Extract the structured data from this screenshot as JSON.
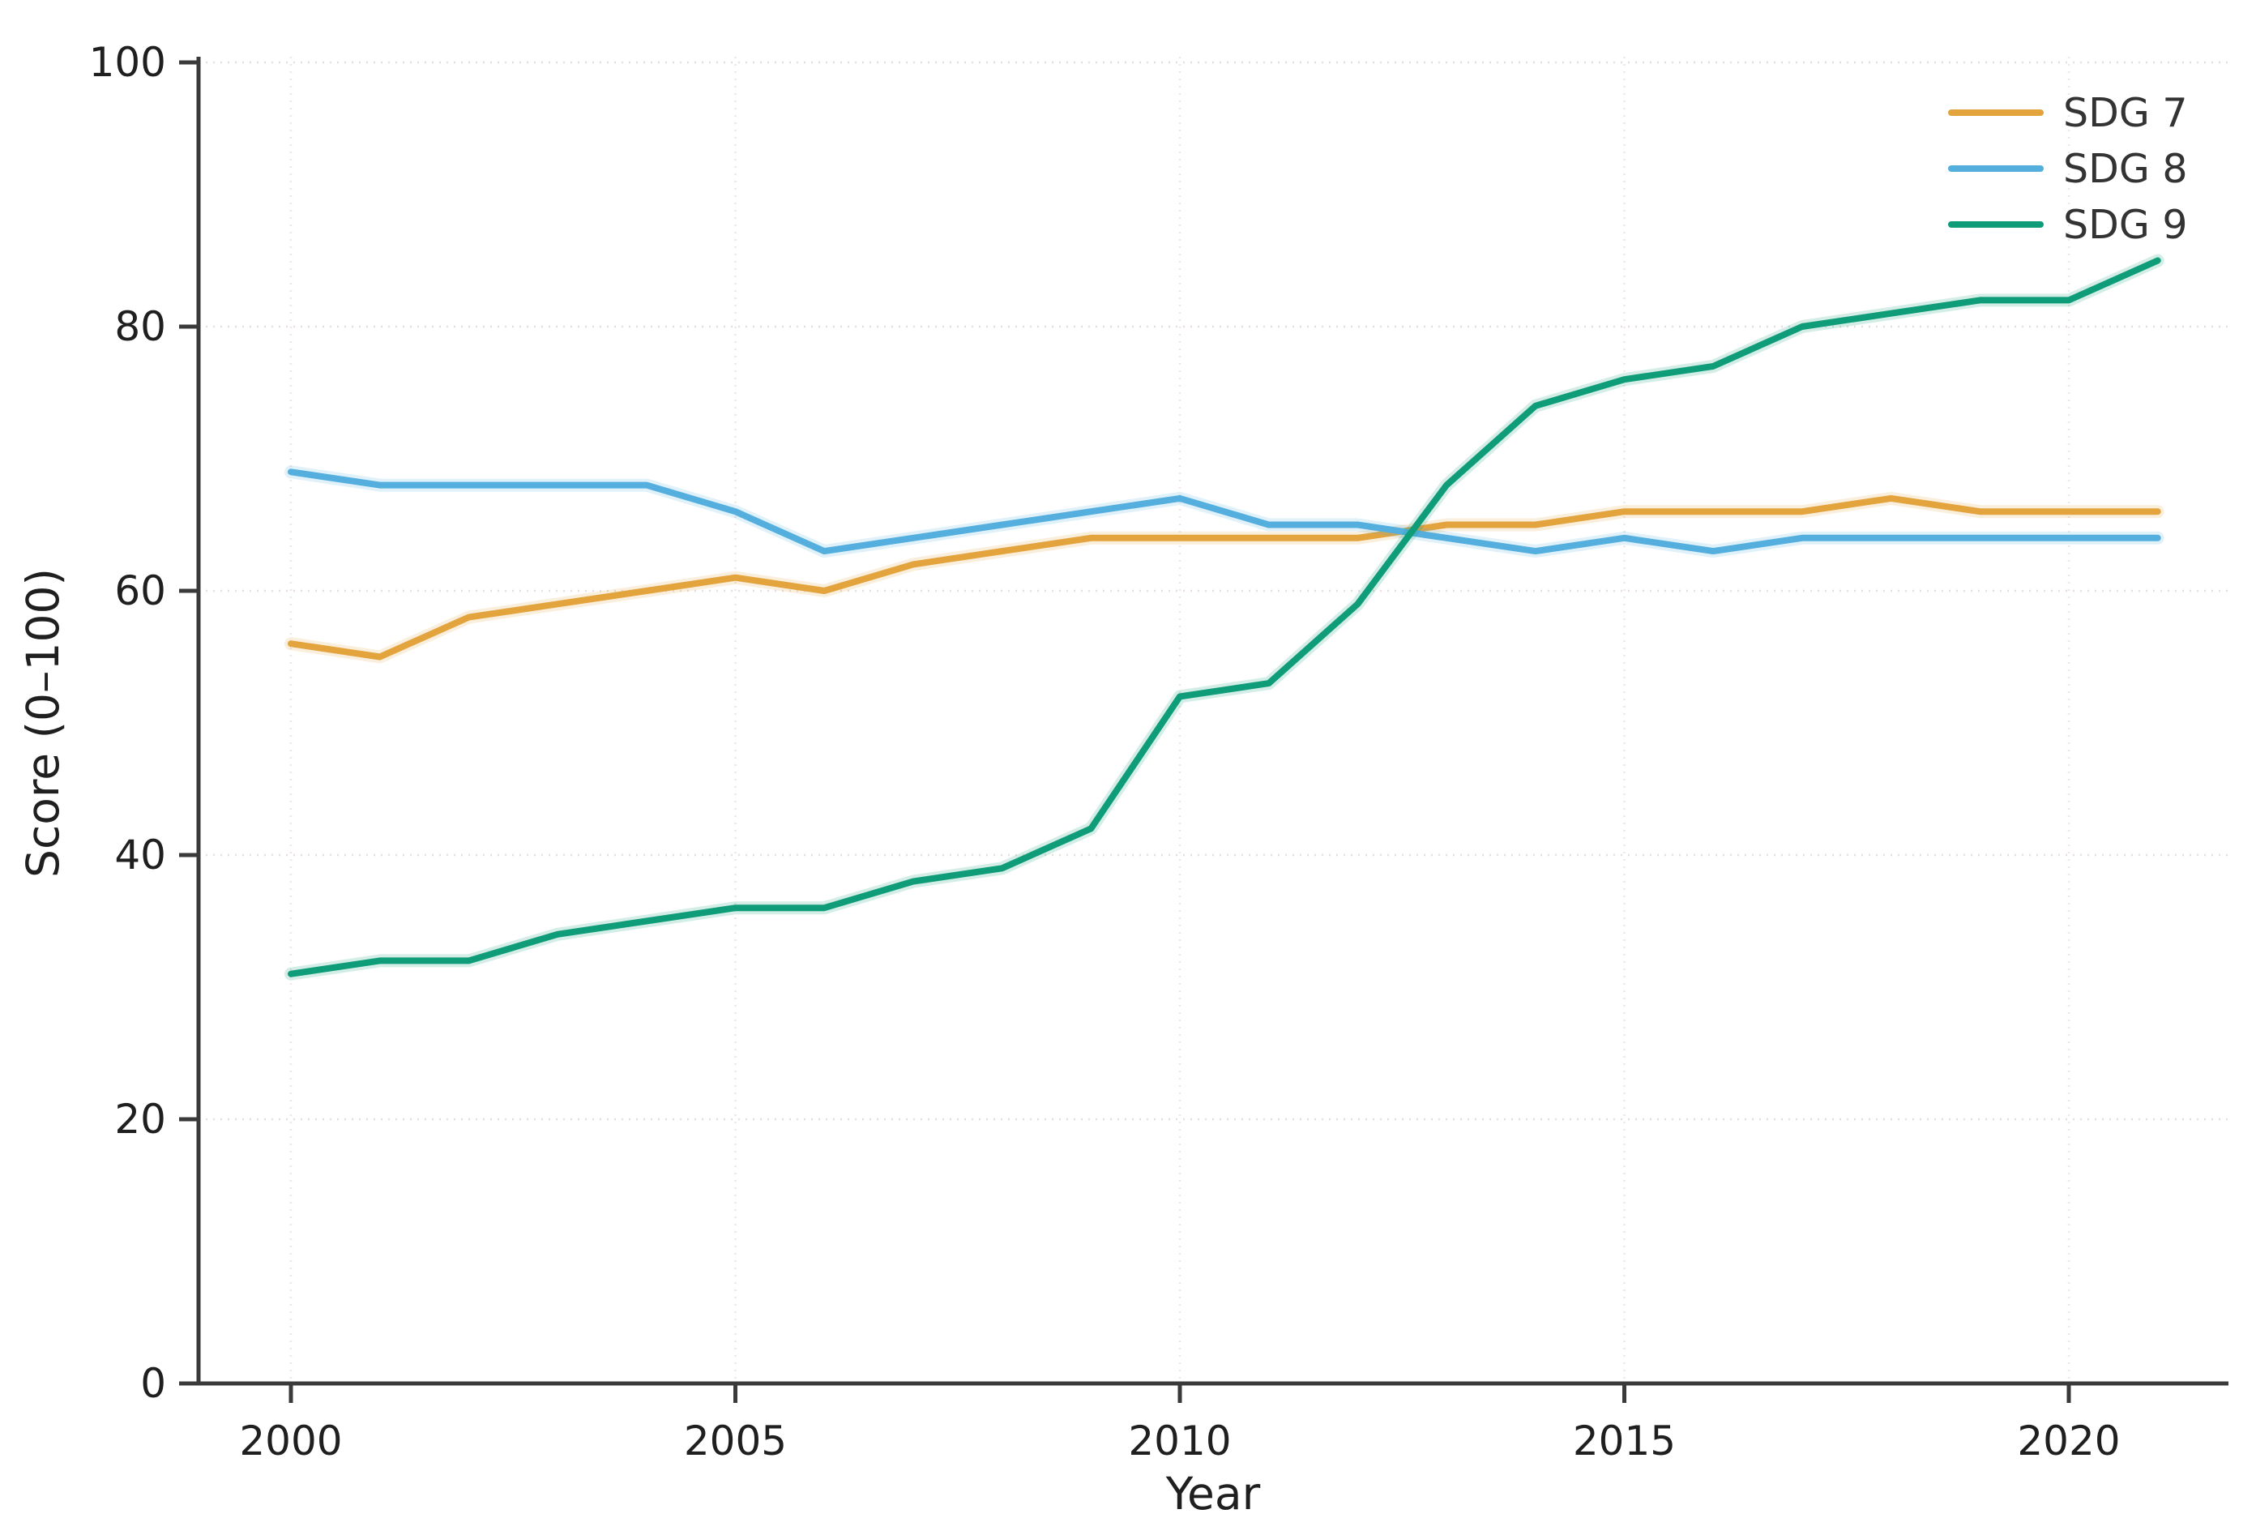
{
  "chart_data": {
    "type": "line",
    "title": "",
    "xlabel": "Year",
    "ylabel": "Score (0–100)",
    "x": [
      2000,
      2001,
      2002,
      2003,
      2004,
      2005,
      2006,
      2007,
      2008,
      2009,
      2010,
      2011,
      2012,
      2013,
      2014,
      2015,
      2016,
      2017,
      2018,
      2019,
      2020,
      2021
    ],
    "series": [
      {
        "name": "SDG 7",
        "color": "#E3A33D",
        "values": [
          56,
          55,
          58,
          59,
          60,
          61,
          60,
          62,
          63,
          64,
          64,
          64,
          64,
          65,
          65,
          66,
          66,
          66,
          67,
          66,
          66,
          66
        ]
      },
      {
        "name": "SDG 8",
        "color": "#54AFDE",
        "values": [
          69,
          68,
          68,
          68,
          68,
          66,
          63,
          64,
          65,
          66,
          67,
          65,
          65,
          64,
          63,
          64,
          63,
          64,
          64,
          64,
          64,
          64
        ]
      },
      {
        "name": "SDG 9",
        "color": "#0F9C78",
        "values": [
          31,
          32,
          32,
          34,
          35,
          36,
          36,
          38,
          39,
          42,
          52,
          53,
          59,
          68,
          74,
          76,
          77,
          80,
          81,
          82,
          82,
          85
        ]
      }
    ],
    "xticks": [
      2000,
      2005,
      2010,
      2015,
      2020
    ],
    "yticks": [
      0,
      20,
      40,
      60,
      80,
      100
    ],
    "ylim": [
      0,
      100
    ],
    "grid": true,
    "legend_position": "upper right"
  },
  "colors": {
    "background": "#ffffff",
    "spine": "#3a3a3a",
    "grid_h": "#e6dddd",
    "grid_v": "#efe6e6",
    "tick_text": "#1f1f1f"
  }
}
